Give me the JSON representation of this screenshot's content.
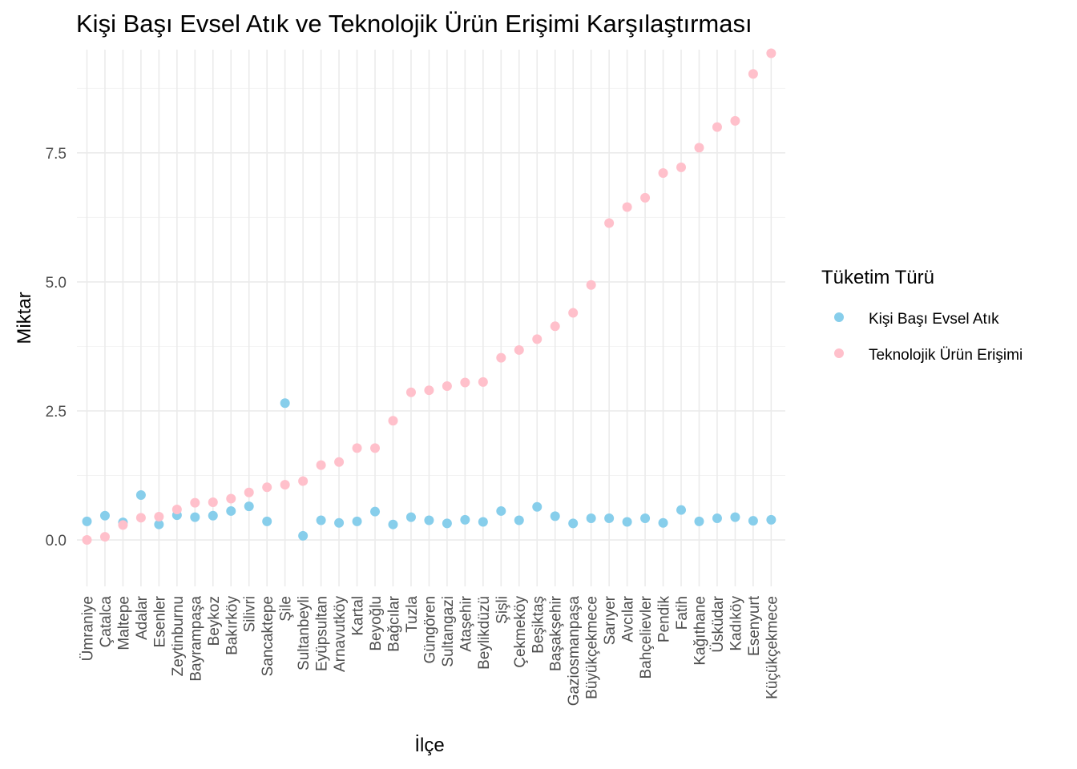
{
  "chart_data": {
    "type": "scatter",
    "title": "Kişi Başı Evsel Atık ve Teknolojik Ürün Erişimi Karşılaştırması",
    "xlabel": "İlçe",
    "ylabel": "Miktar",
    "ylim": [
      -0.9,
      9.5
    ],
    "yticks": [
      0.0,
      2.5,
      5.0,
      7.5
    ],
    "ytick_labels": [
      "0.0",
      "2.5",
      "5.0",
      "7.5"
    ],
    "grid": true,
    "categories": [
      "Ümraniye",
      "Çatalca",
      "Maltepe",
      "Adalar",
      "Esenler",
      "Zeytinburnu",
      "Bayrampaşa",
      "Beykoz",
      "Bakırköy",
      "Silivri",
      "Sancaktepe",
      "Şile",
      "Sultanbeyli",
      "Eyüpsultan",
      "Arnavutköy",
      "Kartal",
      "Beyoğlu",
      "Bağcılar",
      "Tuzla",
      "Güngören",
      "Sultangazi",
      "Ataşehir",
      "Beylikdüzü",
      "Şişli",
      "Çekmeköy",
      "Beşiktaş",
      "Başakşehir",
      "Gaziosmanpaşa",
      "Büyükçekmece",
      "Sarıyer",
      "Avcılar",
      "Bahçelievler",
      "Pendik",
      "Fatih",
      "Kağıthane",
      "Üsküdar",
      "Kadıköy",
      "Esenyurt",
      "Küçükçekmece"
    ],
    "legend": {
      "title": "Tüketim Türü",
      "position": "right"
    },
    "series": [
      {
        "name": "Kişi Başı Evsel Atık",
        "color": "#87ceeb",
        "values": [
          0.36,
          0.47,
          0.34,
          0.87,
          0.3,
          0.48,
          0.44,
          0.47,
          0.56,
          0.65,
          0.36,
          2.65,
          0.08,
          0.38,
          0.33,
          0.36,
          0.55,
          0.3,
          0.44,
          0.38,
          0.32,
          0.39,
          0.35,
          0.56,
          0.38,
          0.64,
          0.46,
          0.32,
          0.42,
          0.42,
          0.35,
          0.42,
          0.33,
          0.58,
          0.36,
          0.42,
          0.44,
          0.37,
          0.39
        ]
      },
      {
        "name": "Teknolojik Ürün Erişimi",
        "color": "#ffc0cb",
        "values": [
          0.0,
          0.06,
          0.29,
          0.43,
          0.45,
          0.59,
          0.72,
          0.73,
          0.8,
          0.92,
          1.02,
          1.07,
          1.14,
          1.45,
          1.51,
          1.78,
          1.78,
          2.31,
          2.86,
          2.9,
          2.98,
          3.05,
          3.06,
          3.53,
          3.68,
          3.89,
          4.14,
          4.4,
          4.94,
          6.14,
          6.45,
          6.63,
          7.11,
          7.22,
          7.6,
          8.0,
          8.12,
          9.03,
          9.43
        ]
      }
    ]
  }
}
